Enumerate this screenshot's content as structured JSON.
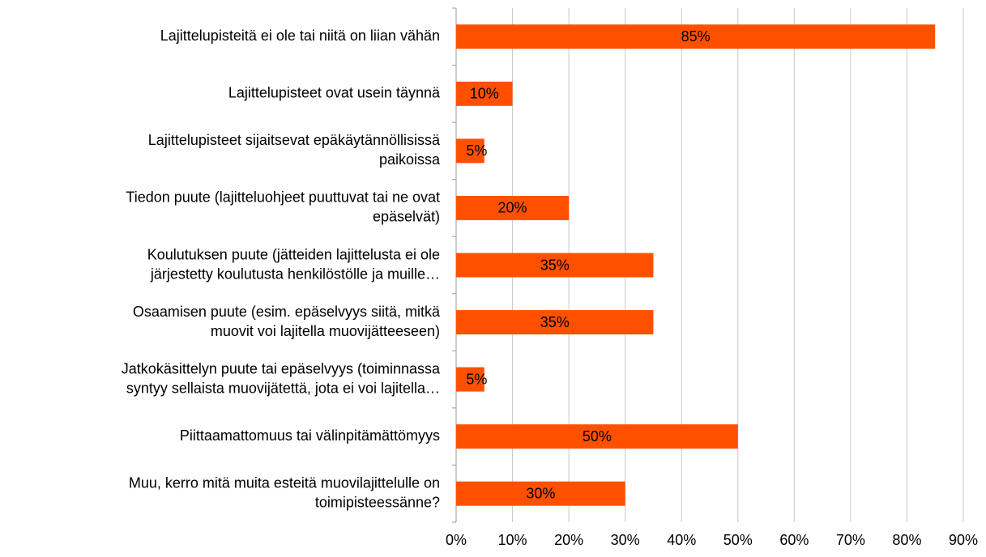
{
  "chart_data": {
    "type": "bar",
    "orientation": "horizontal",
    "categories": [
      [
        "Lajittelupisteitä ei ole tai niitä on liian vähän"
      ],
      [
        "Lajittelupisteet ovat usein täynnä"
      ],
      [
        "Lajittelupisteet sijaitsevat epäkäytännöllisissä",
        "paikoissa"
      ],
      [
        "Tiedon puute (lajitteluohjeet puuttuvat tai ne ovat",
        "epäselvät)"
      ],
      [
        "Koulutuksen puute (jätteiden lajittelusta ei ole",
        "järjestetty koulutusta henkilöstölle ja muille…"
      ],
      [
        "Osaamisen puute (esim. epäselvyys siitä, mitkä",
        "muovit voi lajitella muovijätteeseen)"
      ],
      [
        "Jatkokäsittelyn puute tai epäselvyys (toiminnassa",
        "syntyy sellaista muovijätettä, jota ei voi lajitella…"
      ],
      [
        "Piittaamattomuus tai välinpitämättömyys"
      ],
      [
        "Muu, kerro mitä muita esteitä muovilajittelulle on",
        "toimipisteessänne?"
      ]
    ],
    "values": [
      85,
      10,
      5,
      20,
      35,
      35,
      5,
      50,
      30
    ],
    "value_labels": [
      "85%",
      "10%",
      "5%",
      "20%",
      "35%",
      "35%",
      "5%",
      "50%",
      "30%"
    ],
    "color": "#ff5000",
    "xlim": [
      0,
      90
    ],
    "xticks": [
      {
        "value": 0,
        "label": "0%"
      },
      {
        "value": 10,
        "label": "10%"
      },
      {
        "value": 20,
        "label": "20%"
      },
      {
        "value": 30,
        "label": "30%"
      },
      {
        "value": 40,
        "label": "40%"
      },
      {
        "value": 50,
        "label": "50%"
      },
      {
        "value": 60,
        "label": "60%"
      },
      {
        "value": 70,
        "label": "70%"
      },
      {
        "value": 80,
        "label": "80%"
      },
      {
        "value": 90,
        "label": "90%"
      }
    ],
    "grid": true
  }
}
